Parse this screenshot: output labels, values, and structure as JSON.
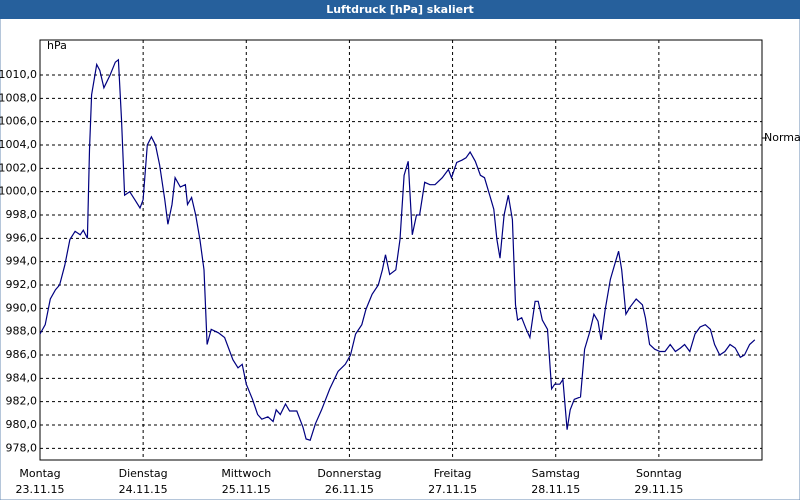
{
  "chart_data": {
    "type": "line",
    "title": "Luftdruck [hPa] skaliert",
    "y_unit": "hPa",
    "xlim": [
      0,
      7
    ],
    "ylim": [
      977,
      1013
    ],
    "grid": true,
    "color": "#000080",
    "xticks": [
      {
        "value": 0,
        "label": "Montag",
        "date": "23.11.15"
      },
      {
        "value": 1,
        "label": "Dienstag",
        "date": "24.11.15"
      },
      {
        "value": 2,
        "label": "Mittwoch",
        "date": "25.11.15"
      },
      {
        "value": 3,
        "label": "Donnerstag",
        "date": "26.11.15"
      },
      {
        "value": 4,
        "label": "Freitag",
        "date": "27.11.15"
      },
      {
        "value": 5,
        "label": "Samstag",
        "date": "28.11.15"
      },
      {
        "value": 6,
        "label": "Sonntag",
        "date": "29.11.15"
      }
    ],
    "yticks": [
      {
        "value": 978,
        "label": "978,0"
      },
      {
        "value": 980,
        "label": "980,0"
      },
      {
        "value": 982,
        "label": "982,0"
      },
      {
        "value": 984,
        "label": "984,0"
      },
      {
        "value": 986,
        "label": "986,0"
      },
      {
        "value": 988,
        "label": "988,0"
      },
      {
        "value": 990,
        "label": "990,0"
      },
      {
        "value": 992,
        "label": "992,0"
      },
      {
        "value": 994,
        "label": "994,0"
      },
      {
        "value": 996,
        "label": "996,0"
      },
      {
        "value": 998,
        "label": "998,0"
      },
      {
        "value": 1000,
        "label": "1000,0"
      },
      {
        "value": 1002,
        "label": "1002,0"
      },
      {
        "value": 1004,
        "label": "1004,0"
      },
      {
        "value": 1006,
        "label": "1006,0"
      },
      {
        "value": 1008,
        "label": "1008,0"
      },
      {
        "value": 1010,
        "label": "1010,0"
      }
    ],
    "reference": {
      "label": "Normal",
      "value": 1004.6
    },
    "x": [
      0,
      0.05,
      0.1,
      0.15,
      0.19,
      0.24,
      0.29,
      0.34,
      0.39,
      0.42,
      0.46,
      0.48,
      0.5,
      0.55,
      0.58,
      0.62,
      0.68,
      0.73,
      0.76,
      0.79,
      0.82,
      0.87,
      0.92,
      0.97,
      1.0,
      1.04,
      1.08,
      1.12,
      1.16,
      1.21,
      1.24,
      1.28,
      1.31,
      1.36,
      1.41,
      1.43,
      1.47,
      1.51,
      1.55,
      1.59,
      1.62,
      1.66,
      1.73,
      1.79,
      1.87,
      1.92,
      1.96,
      2.0,
      2.06,
      2.11,
      2.15,
      2.21,
      2.26,
      2.29,
      2.33,
      2.38,
      2.42,
      2.49,
      2.55,
      2.58,
      2.62,
      2.67,
      2.73,
      2.81,
      2.89,
      2.96,
      3.01,
      3.06,
      3.12,
      3.16,
      3.22,
      3.28,
      3.32,
      3.35,
      3.39,
      3.45,
      3.49,
      3.53,
      3.57,
      3.61,
      3.65,
      3.68,
      3.73,
      3.78,
      3.83,
      3.9,
      3.96,
      3.99,
      4.04,
      4.09,
      4.13,
      4.17,
      4.22,
      4.27,
      4.31,
      4.36,
      4.4,
      4.43,
      4.46,
      4.5,
      4.54,
      4.58,
      4.61,
      4.63,
      4.67,
      4.71,
      4.75,
      4.8,
      4.83,
      4.87,
      4.92,
      4.96,
      4.99,
      5.04,
      5.07,
      5.11,
      5.14,
      5.18,
      5.24,
      5.28,
      5.33,
      5.37,
      5.41,
      5.44,
      5.48,
      5.53,
      5.58,
      5.61,
      5.64,
      5.68,
      5.72,
      5.78,
      5.84,
      5.87,
      5.91,
      5.96,
      6.01,
      6.06,
      6.11,
      6.16,
      6.21,
      6.25,
      6.3,
      6.35,
      6.4,
      6.45,
      6.5,
      6.54,
      6.59,
      6.64,
      6.69,
      6.74,
      6.79,
      6.83,
      6.88,
      6.93
    ],
    "values": [
      987.8,
      988.6,
      990.8,
      991.6,
      992.0,
      993.7,
      995.9,
      996.6,
      996.3,
      996.7,
      996.0,
      1003.6,
      1008.3,
      1010.9,
      1010.4,
      1008.9,
      1010.0,
      1011.1,
      1011.3,
      1006.2,
      999.7,
      1000.0,
      999.3,
      998.6,
      999.3,
      1004.0,
      1004.7,
      1004.0,
      1002.3,
      999.3,
      997.2,
      998.9,
      1001.2,
      1000.4,
      1000.6,
      998.9,
      999.5,
      998.0,
      995.9,
      993.3,
      986.9,
      988.2,
      987.9,
      987.5,
      985.6,
      984.9,
      985.2,
      983.5,
      982.2,
      980.9,
      980.5,
      980.7,
      980.3,
      981.3,
      980.9,
      981.8,
      981.2,
      981.2,
      979.8,
      978.8,
      978.7,
      980.1,
      981.3,
      983.1,
      984.6,
      985.2,
      986.0,
      987.8,
      988.6,
      989.9,
      991.2,
      992.0,
      993.3,
      994.6,
      992.9,
      993.3,
      995.9,
      1001.4,
      1002.6,
      996.3,
      998.0,
      998.0,
      1000.8,
      1000.6,
      1000.6,
      1001.2,
      1001.9,
      1001.2,
      1002.5,
      1002.7,
      1002.9,
      1003.4,
      1002.6,
      1001.4,
      1001.2,
      999.7,
      998.5,
      995.9,
      994.3,
      998.0,
      999.7,
      997.6,
      990.3,
      989.0,
      989.2,
      988.3,
      987.5,
      990.6,
      990.6,
      989.0,
      988.2,
      983.1,
      983.5,
      983.5,
      983.9,
      979.6,
      981.3,
      982.2,
      982.4,
      986.5,
      988.0,
      989.5,
      988.9,
      987.3,
      989.9,
      992.5,
      994.0,
      994.9,
      993.3,
      989.5,
      990.1,
      990.8,
      990.3,
      989.2,
      986.9,
      986.5,
      986.3,
      986.3,
      986.9,
      986.3,
      986.6,
      986.9,
      986.3,
      987.8,
      988.4,
      988.6,
      988.2,
      986.9,
      986.0,
      986.3,
      986.9,
      986.6,
      985.8,
      986.0,
      986.9,
      987.3
    ]
  }
}
